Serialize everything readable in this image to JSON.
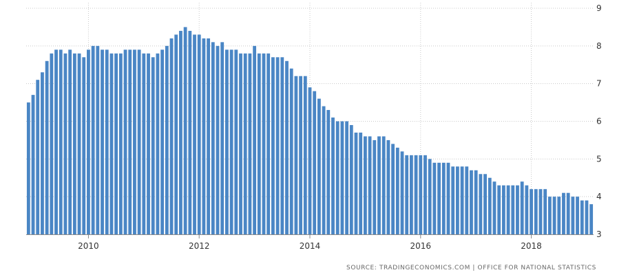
{
  "chart_data": {
    "type": "bar",
    "title": "",
    "xlabel": "",
    "ylabel": "",
    "ylim": [
      3,
      9
    ],
    "y_ticks": [
      3,
      4,
      5,
      6,
      7,
      8,
      9
    ],
    "x_ticks": [
      "2010",
      "2012",
      "2014",
      "2016",
      "2018"
    ],
    "grid": "dotted",
    "bar_color": "#4a86c5",
    "start": "2008-12",
    "frequency": "monthly",
    "values": [
      6.5,
      6.7,
      7.1,
      7.3,
      7.6,
      7.8,
      7.9,
      7.9,
      7.8,
      7.9,
      7.8,
      7.8,
      7.7,
      7.9,
      8.0,
      8.0,
      7.9,
      7.9,
      7.8,
      7.8,
      7.8,
      7.9,
      7.9,
      7.9,
      7.9,
      7.8,
      7.8,
      7.7,
      7.8,
      7.9,
      8.0,
      8.2,
      8.3,
      8.4,
      8.5,
      8.4,
      8.3,
      8.3,
      8.2,
      8.2,
      8.1,
      8.0,
      8.1,
      7.9,
      7.9,
      7.9,
      7.8,
      7.8,
      7.8,
      8.0,
      7.8,
      7.8,
      7.8,
      7.7,
      7.7,
      7.7,
      7.6,
      7.4,
      7.2,
      7.2,
      7.2,
      6.9,
      6.8,
      6.6,
      6.4,
      6.3,
      6.1,
      6.0,
      6.0,
      6.0,
      5.9,
      5.7,
      5.7,
      5.6,
      5.6,
      5.5,
      5.6,
      5.6,
      5.5,
      5.4,
      5.3,
      5.2,
      5.1,
      5.1,
      5.1,
      5.1,
      5.1,
      5.0,
      4.9,
      4.9,
      4.9,
      4.9,
      4.8,
      4.8,
      4.8,
      4.8,
      4.7,
      4.7,
      4.6,
      4.6,
      4.5,
      4.4,
      4.3,
      4.3,
      4.3,
      4.3,
      4.3,
      4.4,
      4.3,
      4.2,
      4.2,
      4.2,
      4.2,
      4.0,
      4.0,
      4.0,
      4.1,
      4.1,
      4.0,
      4.0,
      3.9,
      3.9,
      3.8
    ]
  },
  "source_text": "SOURCE: TRADINGECONOMICS.COM | OFFICE FOR NATIONAL STATISTICS"
}
